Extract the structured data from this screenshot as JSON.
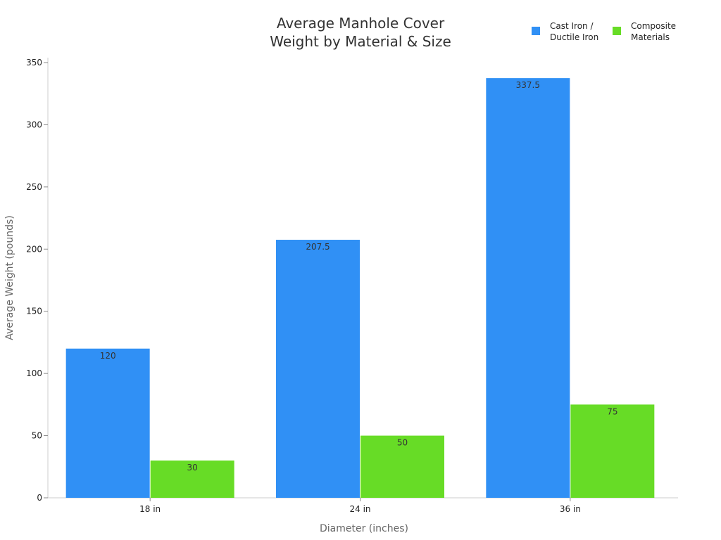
{
  "chart_data": {
    "type": "bar",
    "title": [
      "Average Manhole Cover",
      "Weight by Material & Size"
    ],
    "xlabel": "Diameter (inches)",
    "ylabel": "Average Weight (pounds)",
    "categories": [
      "18 in",
      "24 in",
      "36 in"
    ],
    "ylim": [
      0,
      350
    ],
    "yticks": [
      0,
      50,
      100,
      150,
      200,
      250,
      300,
      350
    ],
    "grid": false,
    "legend_position": "top-right",
    "series": [
      {
        "name": [
          "Cast Iron /",
          "Ductile Iron"
        ],
        "color": "#3090f5",
        "values": [
          120,
          207.5,
          337.5
        ]
      },
      {
        "name": [
          "Composite",
          "Materials"
        ],
        "color": "#67dc26",
        "values": [
          30,
          50,
          75
        ]
      }
    ]
  }
}
